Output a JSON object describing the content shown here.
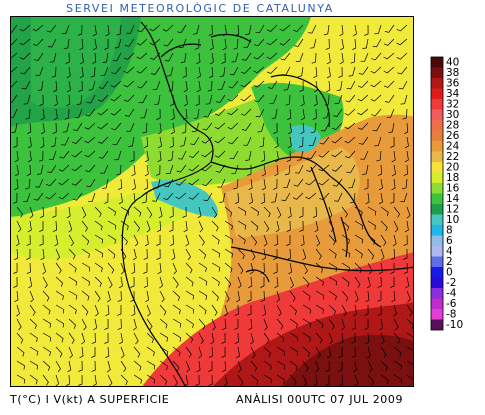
{
  "header": {
    "title": "SERVEI METEOROLÒGIC DE CATALUNYA"
  },
  "footer": {
    "left": "T(°C) I V(kt) A SUPERFICIE",
    "right": "ANÀLISI 00UTC 07 JUL 2009"
  },
  "legend": {
    "unit": "°C",
    "entries": [
      {
        "label": "40",
        "color": "#4a0a0a"
      },
      {
        "label": "38",
        "color": "#7a1010"
      },
      {
        "label": "36",
        "color": "#b01818"
      },
      {
        "label": "34",
        "color": "#e01b1b"
      },
      {
        "label": "32",
        "color": "#f03a3a"
      },
      {
        "label": "30",
        "color": "#f25c5c"
      },
      {
        "label": "28",
        "color": "#ef6e45"
      },
      {
        "label": "26",
        "color": "#e8803a"
      },
      {
        "label": "24",
        "color": "#e89b3a"
      },
      {
        "label": "22",
        "color": "#e8b84a"
      },
      {
        "label": "20",
        "color": "#f5e23a"
      },
      {
        "label": "18",
        "color": "#d6ee2e"
      },
      {
        "label": "16",
        "color": "#8edb32"
      },
      {
        "label": "14",
        "color": "#3cc23c"
      },
      {
        "label": "12",
        "color": "#1e9e4a"
      },
      {
        "label": "10",
        "color": "#45c7c0"
      },
      {
        "label": "8",
        "color": "#21b6e8"
      },
      {
        "label": "6",
        "color": "#8fbde8"
      },
      {
        "label": "4",
        "color": "#aeb8ee"
      },
      {
        "label": "2",
        "color": "#5f6de8"
      },
      {
        "label": "0",
        "color": "#1a1ae8"
      },
      {
        "label": "-2",
        "color": "#2a0ad6"
      },
      {
        "label": "-4",
        "color": "#8a2ee0"
      },
      {
        "label": "-6",
        "color": "#c02cd0"
      },
      {
        "label": "-8",
        "color": "#e23ed6"
      },
      {
        "label": "-10",
        "color": "#5a0f5a"
      }
    ]
  },
  "map": {
    "background": "#f2ea3a"
  }
}
